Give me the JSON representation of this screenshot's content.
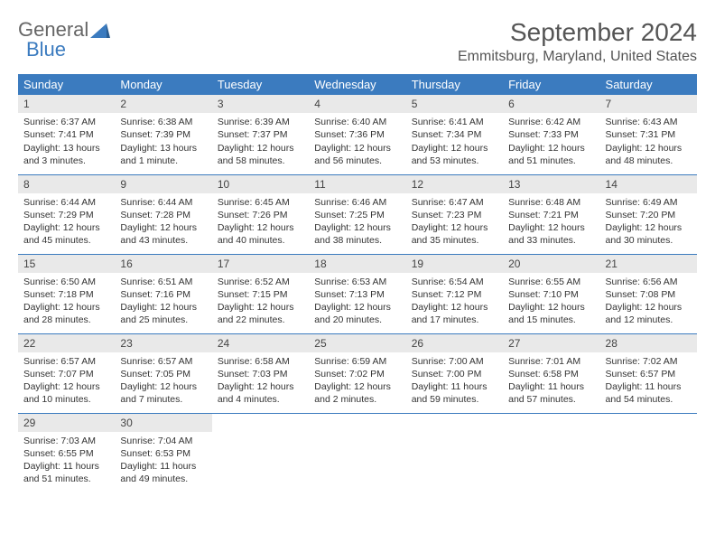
{
  "brand": {
    "part1": "General",
    "part2": "Blue"
  },
  "title": "September 2024",
  "location": "Emmitsburg, Maryland, United States",
  "colors": {
    "header_bg": "#3b7bbf",
    "daynum_bg": "#e9e9e9",
    "rule": "#3b7bbf"
  },
  "weekdays": [
    "Sunday",
    "Monday",
    "Tuesday",
    "Wednesday",
    "Thursday",
    "Friday",
    "Saturday"
  ],
  "days": [
    {
      "n": "1",
      "sr": "Sunrise: 6:37 AM",
      "ss": "Sunset: 7:41 PM",
      "dl": "Daylight: 13 hours and 3 minutes."
    },
    {
      "n": "2",
      "sr": "Sunrise: 6:38 AM",
      "ss": "Sunset: 7:39 PM",
      "dl": "Daylight: 13 hours and 1 minute."
    },
    {
      "n": "3",
      "sr": "Sunrise: 6:39 AM",
      "ss": "Sunset: 7:37 PM",
      "dl": "Daylight: 12 hours and 58 minutes."
    },
    {
      "n": "4",
      "sr": "Sunrise: 6:40 AM",
      "ss": "Sunset: 7:36 PM",
      "dl": "Daylight: 12 hours and 56 minutes."
    },
    {
      "n": "5",
      "sr": "Sunrise: 6:41 AM",
      "ss": "Sunset: 7:34 PM",
      "dl": "Daylight: 12 hours and 53 minutes."
    },
    {
      "n": "6",
      "sr": "Sunrise: 6:42 AM",
      "ss": "Sunset: 7:33 PM",
      "dl": "Daylight: 12 hours and 51 minutes."
    },
    {
      "n": "7",
      "sr": "Sunrise: 6:43 AM",
      "ss": "Sunset: 7:31 PM",
      "dl": "Daylight: 12 hours and 48 minutes."
    },
    {
      "n": "8",
      "sr": "Sunrise: 6:44 AM",
      "ss": "Sunset: 7:29 PM",
      "dl": "Daylight: 12 hours and 45 minutes."
    },
    {
      "n": "9",
      "sr": "Sunrise: 6:44 AM",
      "ss": "Sunset: 7:28 PM",
      "dl": "Daylight: 12 hours and 43 minutes."
    },
    {
      "n": "10",
      "sr": "Sunrise: 6:45 AM",
      "ss": "Sunset: 7:26 PM",
      "dl": "Daylight: 12 hours and 40 minutes."
    },
    {
      "n": "11",
      "sr": "Sunrise: 6:46 AM",
      "ss": "Sunset: 7:25 PM",
      "dl": "Daylight: 12 hours and 38 minutes."
    },
    {
      "n": "12",
      "sr": "Sunrise: 6:47 AM",
      "ss": "Sunset: 7:23 PM",
      "dl": "Daylight: 12 hours and 35 minutes."
    },
    {
      "n": "13",
      "sr": "Sunrise: 6:48 AM",
      "ss": "Sunset: 7:21 PM",
      "dl": "Daylight: 12 hours and 33 minutes."
    },
    {
      "n": "14",
      "sr": "Sunrise: 6:49 AM",
      "ss": "Sunset: 7:20 PM",
      "dl": "Daylight: 12 hours and 30 minutes."
    },
    {
      "n": "15",
      "sr": "Sunrise: 6:50 AM",
      "ss": "Sunset: 7:18 PM",
      "dl": "Daylight: 12 hours and 28 minutes."
    },
    {
      "n": "16",
      "sr": "Sunrise: 6:51 AM",
      "ss": "Sunset: 7:16 PM",
      "dl": "Daylight: 12 hours and 25 minutes."
    },
    {
      "n": "17",
      "sr": "Sunrise: 6:52 AM",
      "ss": "Sunset: 7:15 PM",
      "dl": "Daylight: 12 hours and 22 minutes."
    },
    {
      "n": "18",
      "sr": "Sunrise: 6:53 AM",
      "ss": "Sunset: 7:13 PM",
      "dl": "Daylight: 12 hours and 20 minutes."
    },
    {
      "n": "19",
      "sr": "Sunrise: 6:54 AM",
      "ss": "Sunset: 7:12 PM",
      "dl": "Daylight: 12 hours and 17 minutes."
    },
    {
      "n": "20",
      "sr": "Sunrise: 6:55 AM",
      "ss": "Sunset: 7:10 PM",
      "dl": "Daylight: 12 hours and 15 minutes."
    },
    {
      "n": "21",
      "sr": "Sunrise: 6:56 AM",
      "ss": "Sunset: 7:08 PM",
      "dl": "Daylight: 12 hours and 12 minutes."
    },
    {
      "n": "22",
      "sr": "Sunrise: 6:57 AM",
      "ss": "Sunset: 7:07 PM",
      "dl": "Daylight: 12 hours and 10 minutes."
    },
    {
      "n": "23",
      "sr": "Sunrise: 6:57 AM",
      "ss": "Sunset: 7:05 PM",
      "dl": "Daylight: 12 hours and 7 minutes."
    },
    {
      "n": "24",
      "sr": "Sunrise: 6:58 AM",
      "ss": "Sunset: 7:03 PM",
      "dl": "Daylight: 12 hours and 4 minutes."
    },
    {
      "n": "25",
      "sr": "Sunrise: 6:59 AM",
      "ss": "Sunset: 7:02 PM",
      "dl": "Daylight: 12 hours and 2 minutes."
    },
    {
      "n": "26",
      "sr": "Sunrise: 7:00 AM",
      "ss": "Sunset: 7:00 PM",
      "dl": "Daylight: 11 hours and 59 minutes."
    },
    {
      "n": "27",
      "sr": "Sunrise: 7:01 AM",
      "ss": "Sunset: 6:58 PM",
      "dl": "Daylight: 11 hours and 57 minutes."
    },
    {
      "n": "28",
      "sr": "Sunrise: 7:02 AM",
      "ss": "Sunset: 6:57 PM",
      "dl": "Daylight: 11 hours and 54 minutes."
    },
    {
      "n": "29",
      "sr": "Sunrise: 7:03 AM",
      "ss": "Sunset: 6:55 PM",
      "dl": "Daylight: 11 hours and 51 minutes."
    },
    {
      "n": "30",
      "sr": "Sunrise: 7:04 AM",
      "ss": "Sunset: 6:53 PM",
      "dl": "Daylight: 11 hours and 49 minutes."
    }
  ]
}
